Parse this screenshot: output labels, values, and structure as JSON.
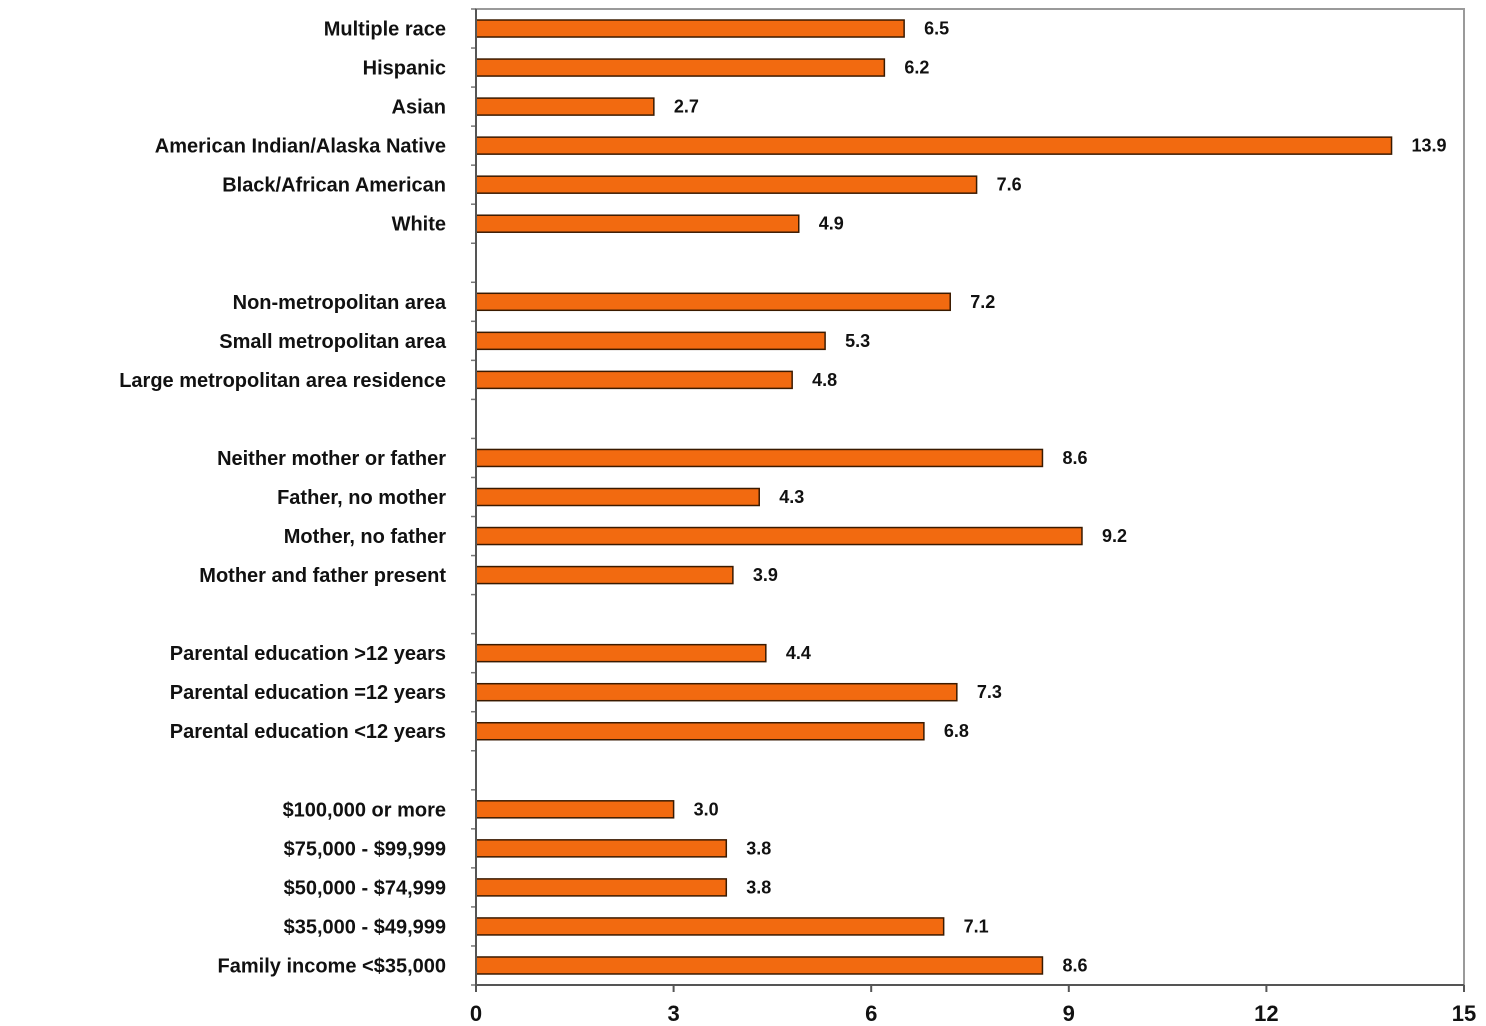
{
  "chart_data": {
    "type": "bar",
    "orientation": "horizontal",
    "title": "",
    "xlabel": "",
    "ylabel": "",
    "xlim": [
      0,
      15
    ],
    "xticks": [
      "0",
      "3",
      "6",
      "9",
      "12",
      "15"
    ],
    "grid": false,
    "legend": "none",
    "bar_color": "#f26a10",
    "bar_edge_color": "#3a1a00",
    "categories": [
      "Multiple race",
      "Hispanic",
      "Asian",
      "American Indian/Alaska Native",
      "Black/African American",
      "White",
      "",
      "Non-metropolitan area",
      "Small metropolitan area",
      "Large metropolitan area residence",
      "",
      "Neither mother or father",
      "Father, no mother",
      "Mother, no father",
      "Mother and father present",
      "",
      "Parental education >12 years",
      "Parental education =12 years",
      "Parental education <12 years",
      "",
      "$100,000 or more",
      "$75,000 - $99,999",
      "$50,000 - $74,999",
      "$35,000 - $49,999",
      "Family income <$35,000"
    ],
    "values": [
      6.5,
      6.2,
      2.7,
      13.9,
      7.6,
      4.9,
      null,
      7.2,
      5.3,
      4.8,
      null,
      8.6,
      4.3,
      9.2,
      3.9,
      null,
      4.4,
      7.3,
      6.8,
      null,
      3.0,
      3.8,
      3.8,
      7.1,
      8.6
    ],
    "value_labels": [
      "6.5",
      "6.2",
      "2.7",
      "13.9",
      "7.6",
      "4.9",
      "",
      "7.2",
      "5.3",
      "4.8",
      "",
      "8.6",
      "4.3",
      "9.2",
      "3.9",
      "",
      "4.4",
      "7.3",
      "6.8",
      "",
      "3.0",
      "3.8",
      "3.8",
      "7.1",
      "8.6"
    ]
  }
}
